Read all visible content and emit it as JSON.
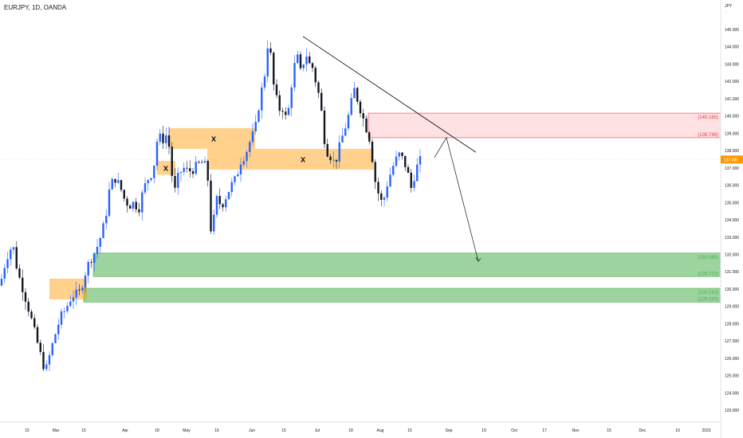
{
  "header": {
    "symbol_title": "EURJPY, 1D, OANDA"
  },
  "chart_data": {
    "type": "candlestick",
    "currency_label": "JPY",
    "last_price": "137.485",
    "ylim": [
      122.6,
      146.2
    ],
    "y_ticks": [
      "145.000",
      "144.000",
      "143.000",
      "142.000",
      "141.000",
      "140.000",
      "139.000",
      "138.000",
      "137.000",
      "136.000",
      "135.000",
      "134.000",
      "133.000",
      "132.000",
      "131.000",
      "130.000",
      "129.000",
      "128.000",
      "127.000",
      "126.000",
      "125.000",
      "124.000",
      "123.000"
    ],
    "x_ticks": [
      "15",
      "Mar",
      "15",
      "Apr",
      "18",
      "May",
      "16",
      "Jun",
      "15",
      "Jul",
      "18",
      "Aug",
      "15",
      "Sep",
      "19",
      "Oct",
      "17",
      "Nov",
      "15",
      "Dec",
      "19",
      "2023"
    ],
    "colors": {
      "up": "#2962ff",
      "down": "#131722",
      "supply": "#f23645",
      "demand": "#4caf50",
      "orderblock": "#ff9800",
      "price_tag": "#ff9800"
    },
    "zones": [
      {
        "kind": "supply",
        "top": 140.165,
        "bottom": 138.746,
        "top_label": "(140.165)",
        "bottom_label": "(138.746)"
      },
      {
        "kind": "demand",
        "top": 132.08,
        "bottom": 130.722,
        "top_label": "(132.080)",
        "bottom_label": "(130.722)"
      },
      {
        "kind": "demand",
        "top": 130.043,
        "bottom": 129.24,
        "top_label": "(130.043)",
        "bottom_label": "(129.240)"
      }
    ],
    "order_blocks": [
      {
        "top": 130.6,
        "bottom": 129.4,
        "mitigated": false
      },
      {
        "top": 137.4,
        "bottom": 136.6,
        "mitigated": true,
        "mark": "x"
      },
      {
        "top": 139.3,
        "bottom": 138.1,
        "mitigated": true,
        "mark": "x"
      },
      {
        "top": 138.1,
        "bottom": 136.9,
        "mitigated": true,
        "mark": "x"
      }
    ],
    "trendline": {
      "from_price": 144.6,
      "to_price": 137.9
    },
    "projection": {
      "start_price": 137.6,
      "peak_price": 138.75,
      "target_price": 131.6
    }
  }
}
